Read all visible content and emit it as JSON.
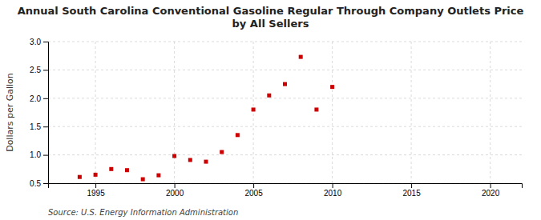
{
  "chart_data": {
    "type": "scatter",
    "title": "Annual South Carolina Conventional Gasoline Regular Through Company Outlets Price by All Sellers",
    "y_label": "Dollars per Gallon",
    "source": "Source: U.S. Energy Information Administration",
    "x": [
      1994,
      1995,
      1996,
      1997,
      1998,
      1999,
      2000,
      2001,
      2002,
      2003,
      2004,
      2005,
      2006,
      2007,
      2008,
      2009,
      2010
    ],
    "values": [
      0.61,
      0.65,
      0.75,
      0.73,
      0.57,
      0.64,
      0.98,
      0.91,
      0.88,
      1.05,
      1.35,
      1.8,
      2.05,
      2.25,
      2.73,
      1.8,
      2.2
    ],
    "color": "#cc0000",
    "marker": "square",
    "xlim": [
      1992,
      2022
    ],
    "ylim": [
      0.5,
      3.0
    ],
    "xticks": [
      1995,
      2000,
      2005,
      2010,
      2015,
      2020
    ],
    "yticks": [
      0.5,
      {
        "value": 1.0,
        "label": "1.0"
      },
      1.5,
      {
        "value": 2.0,
        "label": "2.0"
      },
      2.5,
      {
        "value": 3.0,
        "label": "3.0"
      }
    ],
    "grid": true
  }
}
